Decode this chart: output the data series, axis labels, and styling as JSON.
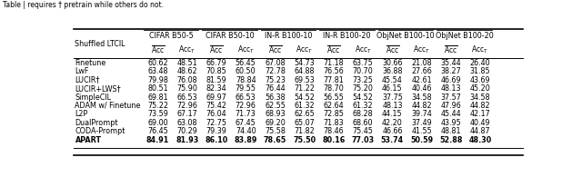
{
  "title": "Table | requires † pretrain while others do not.",
  "col_groups": [
    {
      "label": "CIFAR B50-5"
    },
    {
      "label": "CIFAR B50-10"
    },
    {
      "label": "IN-R B100-10"
    },
    {
      "label": "IN-R B100-20"
    },
    {
      "label": "ObjNet B100-10"
    },
    {
      "label": "ObjNet B100-20"
    }
  ],
  "row_label": "Shuffled LTCIL",
  "methods": [
    "Finetune",
    "LwF",
    "LUCIR†",
    "LUCIR+LWS†",
    "SimpleCIL",
    "ADAM w/ Finetune",
    "L2P",
    "DualPrompt",
    "CODA-Prompt"
  ],
  "bold_method": "APART",
  "data": {
    "Finetune": [
      60.62,
      48.51,
      66.79,
      56.45,
      67.08,
      54.73,
      71.18,
      63.75,
      30.66,
      21.08,
      35.44,
      26.4
    ],
    "LwF": [
      63.48,
      48.62,
      70.85,
      60.5,
      72.78,
      64.88,
      76.56,
      70.7,
      36.88,
      27.66,
      38.27,
      31.85
    ],
    "LUCIR†": [
      79.98,
      76.08,
      81.59,
      78.84,
      75.23,
      69.53,
      77.81,
      73.25,
      45.54,
      42.61,
      46.69,
      43.69
    ],
    "LUCIR+LWS†": [
      80.51,
      75.9,
      82.34,
      79.55,
      76.44,
      71.22,
      78.7,
      75.2,
      46.15,
      40.46,
      48.13,
      45.2
    ],
    "SimpleCIL": [
      69.81,
      66.53,
      69.97,
      66.53,
      56.38,
      54.52,
      56.55,
      54.52,
      37.75,
      34.58,
      37.57,
      34.58
    ],
    "ADAM w/ Finetune": [
      75.22,
      72.96,
      75.42,
      72.96,
      62.55,
      61.32,
      62.64,
      61.32,
      48.13,
      44.82,
      47.96,
      44.82
    ],
    "L2P": [
      73.59,
      67.17,
      76.04,
      71.73,
      68.93,
      62.65,
      72.85,
      68.28,
      44.15,
      39.74,
      45.44,
      42.17
    ],
    "DualPrompt": [
      69.0,
      63.08,
      72.75,
      67.45,
      69.2,
      65.07,
      71.83,
      68.6,
      42.2,
      37.49,
      43.95,
      40.49
    ],
    "CODA-Prompt": [
      76.45,
      70.29,
      79.39,
      74.4,
      75.58,
      71.82,
      78.46,
      75.45,
      46.66,
      41.55,
      48.81,
      44.87
    ],
    "APART": [
      84.91,
      81.93,
      86.1,
      83.89,
      78.65,
      75.5,
      80.16,
      77.03,
      53.74,
      50.59,
      52.88,
      48.3
    ]
  }
}
